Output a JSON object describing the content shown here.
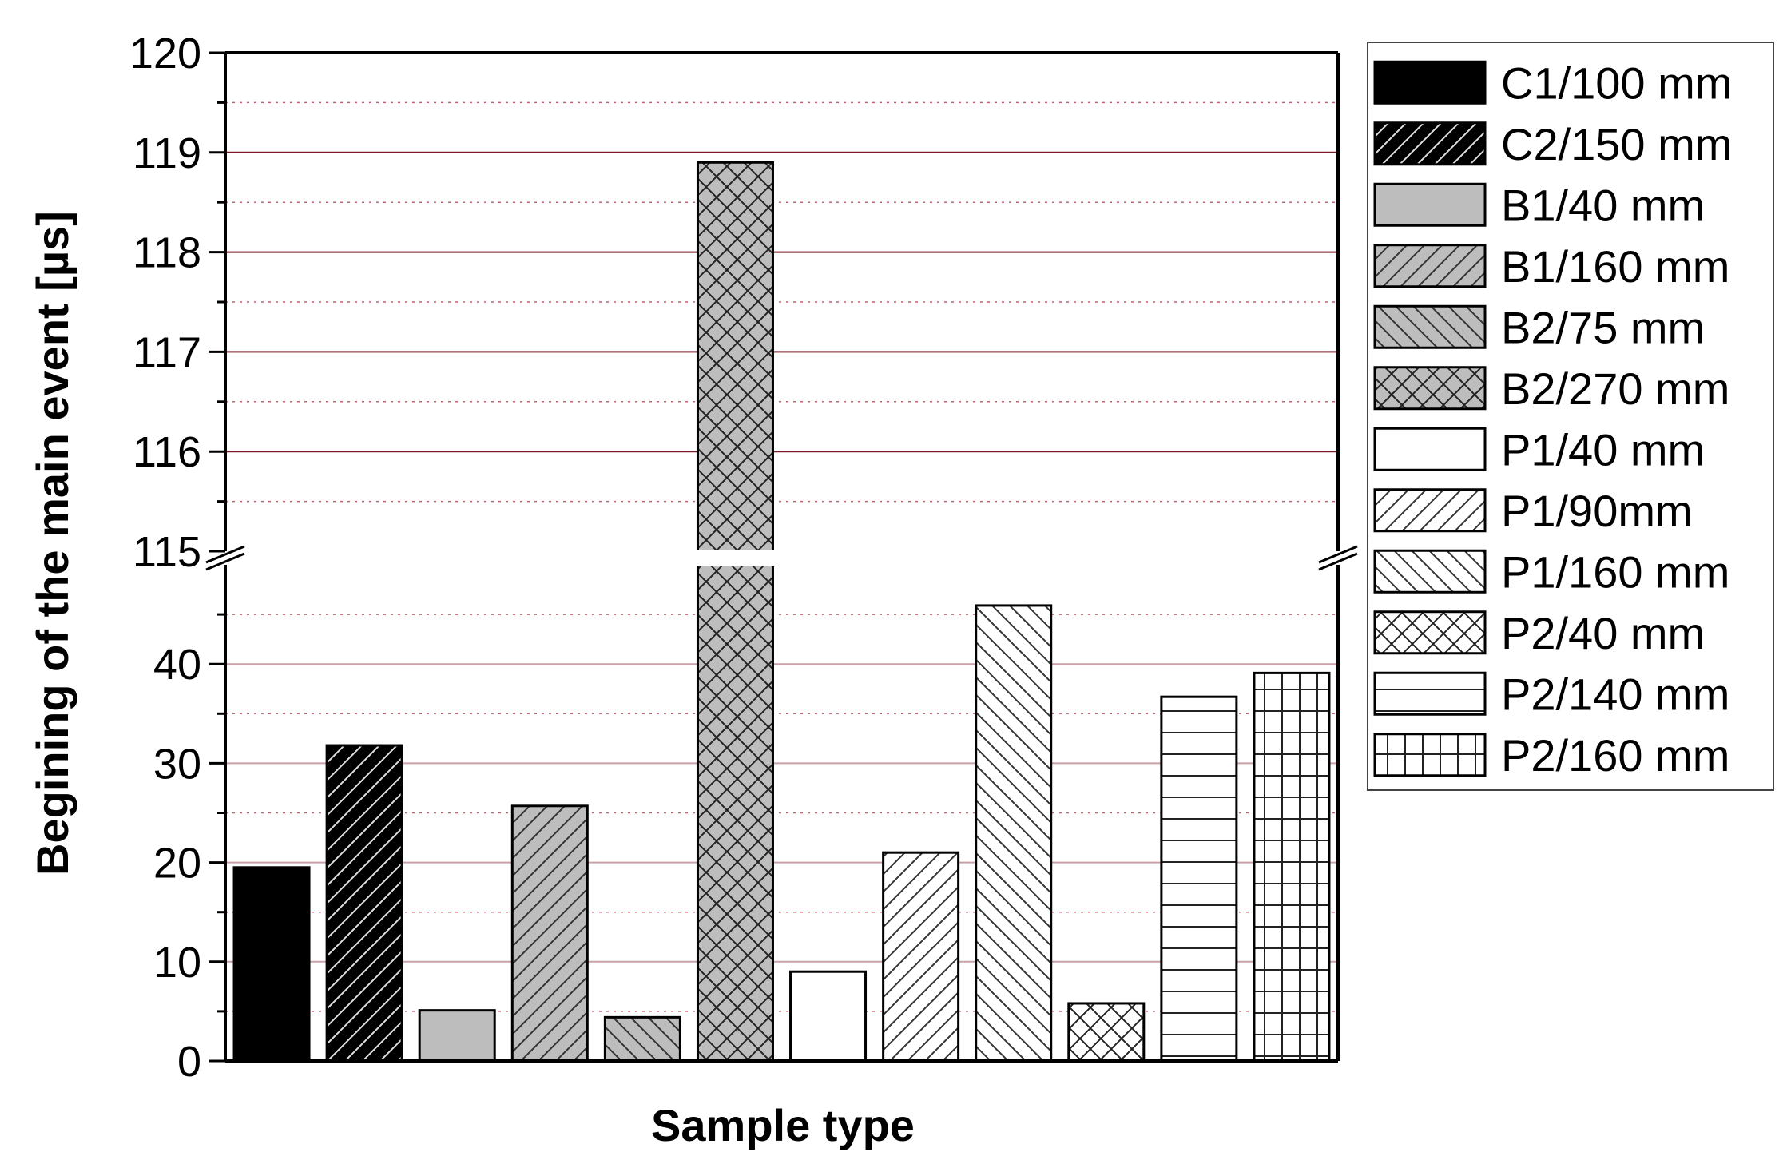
{
  "chart_data": {
    "type": "bar",
    "title": "",
    "xlabel": "Sample type",
    "ylabel": "Begining of the main event [µs]",
    "y_axis_break": {
      "lower_range": [
        0,
        50
      ],
      "upper_range": [
        115,
        120
      ]
    },
    "lower_ticks": [
      "0",
      "10",
      "20",
      "30",
      "40"
    ],
    "upper_ticks": [
      "115",
      "116",
      "117",
      "118",
      "119",
      "120"
    ],
    "grid": true,
    "legend_position": "right",
    "series": [
      {
        "name": "C1/100 mm",
        "value": 19.5,
        "fill": "#000000",
        "hatch": "none"
      },
      {
        "name": "C2/150 mm",
        "value": 31.8,
        "fill": "#000000",
        "hatch": "forward"
      },
      {
        "name": "B1/40 mm",
        "value": 5.1,
        "fill": "#bdbdbd",
        "hatch": "none"
      },
      {
        "name": "B1/160 mm",
        "value": 25.7,
        "fill": "#bdbdbd",
        "hatch": "forward"
      },
      {
        "name": "B2/75 mm",
        "value": 4.4,
        "fill": "#bdbdbd",
        "hatch": "back"
      },
      {
        "name": "B2/270 mm",
        "value": 118.9,
        "fill": "#bdbdbd",
        "hatch": "cross"
      },
      {
        "name": "P1/40 mm",
        "value": 9.0,
        "fill": "#ffffff",
        "hatch": "none"
      },
      {
        "name": "P1/90mm",
        "value": 21.0,
        "fill": "#ffffff",
        "hatch": "forward"
      },
      {
        "name": "P1/160 mm",
        "value": 45.9,
        "fill": "#ffffff",
        "hatch": "back"
      },
      {
        "name": "P2/40 mm",
        "value": 5.8,
        "fill": "#ffffff",
        "hatch": "cross"
      },
      {
        "name": "P2/140 mm",
        "value": 36.7,
        "fill": "#ffffff",
        "hatch": "horizontal"
      },
      {
        "name": "P2/160 mm",
        "value": 39.1,
        "fill": "#ffffff",
        "hatch": "grid"
      }
    ],
    "colors": {
      "major_grid": "#7b1c2b",
      "minor_grid": "#c46070",
      "lower_grid": "#caa0a8"
    }
  }
}
